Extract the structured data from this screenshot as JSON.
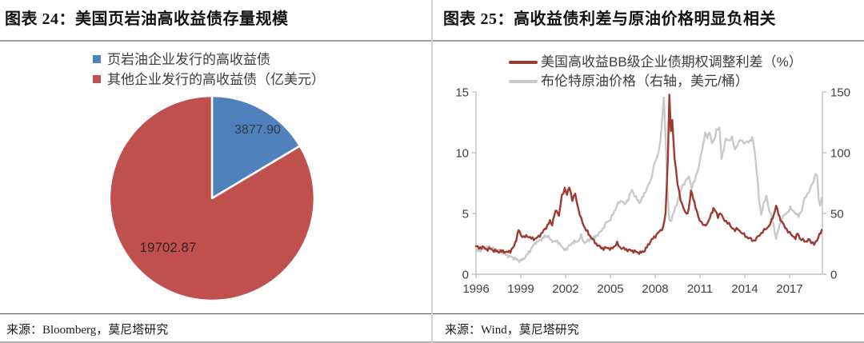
{
  "panels": {
    "left": {
      "title": "图表 24：美国页岩油高收益债存量规模",
      "source": "来源：Bloomberg，莫尼塔研究",
      "legend": [
        {
          "label": "页岩油企业发行的高收益债",
          "color": "#4F81BD"
        },
        {
          "label": "其他企业发行的高收益债（亿美元）",
          "color": "#C0504D"
        }
      ]
    },
    "right": {
      "title": "图表 25：高收益债利差与原油价格明显负相关",
      "source": "来源：Wind，莫尼塔研究",
      "legend": [
        {
          "label": "美国高收益BB级企业债期权调整利差（%）",
          "color": "#9C3A32"
        },
        {
          "label": "布伦特原油价格（右轴，美元/桶）",
          "color": "#C9C9C9"
        }
      ]
    }
  },
  "colors": {
    "pie_blue": "#4F81BD",
    "pie_red": "#C0504D",
    "line_red": "#9C3A32",
    "line_gray": "#C9C9C9",
    "axis": "#bfbfbf"
  },
  "chart_data": [
    {
      "type": "pie",
      "title": "美国页岩油高收益债存量规模",
      "unit": "亿美元",
      "start_angle_deg": -90,
      "clockwise": true,
      "slices": [
        {
          "label": "页岩油企业发行的高收益债",
          "value": 3877.9,
          "display": "3877.90",
          "color": "#4F81BD"
        },
        {
          "label": "其他企业发行的高收益债",
          "value": 19702.87,
          "display": "19702.87",
          "color": "#C0504D"
        }
      ]
    },
    {
      "type": "line",
      "title": "高收益债利差与原油价格明显负相关",
      "x_range": [
        1996,
        2019.2
      ],
      "x_ticks": [
        1996,
        1999,
        2002,
        2005,
        2008,
        2011,
        2014,
        2017
      ],
      "left_axis": {
        "range": [
          0,
          15
        ],
        "ticks": [
          0,
          5,
          10,
          15
        ]
      },
      "right_axis": {
        "range": [
          0,
          150
        ],
        "ticks": [
          0,
          50,
          100,
          150
        ]
      },
      "grid": false,
      "legend_position": "top",
      "series": [
        {
          "name": "布伦特原油价格（右轴，美元/桶）",
          "axis": "right",
          "color": "#C9C9C9",
          "points": [
            [
              1996.0,
              19
            ],
            [
              1996.3,
              20
            ],
            [
              1996.6,
              21
            ],
            [
              1996.9,
              23
            ],
            [
              1997.15,
              21
            ],
            [
              1997.4,
              19.5
            ],
            [
              1997.7,
              19
            ],
            [
              1998.0,
              16
            ],
            [
              1998.3,
              14.5
            ],
            [
              1998.6,
              13
            ],
            [
              1998.9,
              11
            ],
            [
              1999.15,
              12
            ],
            [
              1999.45,
              16.5
            ],
            [
              1999.75,
              22
            ],
            [
              2000.0,
              26
            ],
            [
              2000.3,
              28
            ],
            [
              2000.6,
              31
            ],
            [
              2000.85,
              31.5
            ],
            [
              2001.05,
              27
            ],
            [
              2001.3,
              27.5
            ],
            [
              2001.6,
              25.5
            ],
            [
              2001.85,
              20.5
            ],
            [
              2002.1,
              21
            ],
            [
              2002.35,
              25
            ],
            [
              2002.6,
              26.5
            ],
            [
              2002.85,
              27.5
            ],
            [
              2003.05,
              31.5
            ],
            [
              2003.25,
              26
            ],
            [
              2003.5,
              27.5
            ],
            [
              2003.75,
              29.5
            ],
            [
              2004.0,
              31
            ],
            [
              2004.25,
              33.5
            ],
            [
              2004.5,
              37.5
            ],
            [
              2004.75,
              43
            ],
            [
              2005.0,
              45
            ],
            [
              2005.25,
              51.5
            ],
            [
              2005.5,
              58
            ],
            [
              2005.75,
              61
            ],
            [
              2005.95,
              57
            ],
            [
              2006.2,
              62
            ],
            [
              2006.45,
              69.5
            ],
            [
              2006.7,
              63
            ],
            [
              2006.95,
              59
            ],
            [
              2007.2,
              64
            ],
            [
              2007.45,
              71
            ],
            [
              2007.7,
              77
            ],
            [
              2007.95,
              91
            ],
            [
              2008.15,
              97
            ],
            [
              2008.35,
              109
            ],
            [
              2008.5,
              132
            ],
            [
              2008.58,
              145.6
            ],
            [
              2008.7,
              113
            ],
            [
              2008.8,
              73
            ],
            [
              2008.95,
              44
            ],
            [
              2009.1,
              45
            ],
            [
              2009.25,
              51
            ],
            [
              2009.45,
              58
            ],
            [
              2009.65,
              67
            ],
            [
              2009.85,
              73
            ],
            [
              2010.05,
              77
            ],
            [
              2010.25,
              80
            ],
            [
              2010.45,
              72
            ],
            [
              2010.65,
              77
            ],
            [
              2010.85,
              85
            ],
            [
              2011.05,
              97
            ],
            [
              2011.2,
              105
            ],
            [
              2011.35,
              117
            ],
            [
              2011.5,
              112
            ],
            [
              2011.65,
              117.5
            ],
            [
              2011.8,
              108
            ],
            [
              2011.95,
              110
            ],
            [
              2012.1,
              119
            ],
            [
              2012.3,
              120
            ],
            [
              2012.45,
              96
            ],
            [
              2012.6,
              103
            ],
            [
              2012.75,
              112
            ],
            [
              2012.95,
              110
            ],
            [
              2013.15,
              112
            ],
            [
              2013.35,
              103
            ],
            [
              2013.55,
              107
            ],
            [
              2013.75,
              111
            ],
            [
              2013.95,
              108
            ],
            [
              2014.15,
              108.5
            ],
            [
              2014.35,
              110
            ],
            [
              2014.5,
              112
            ],
            [
              2014.65,
              103
            ],
            [
              2014.8,
              85
            ],
            [
              2014.95,
              62
            ],
            [
              2015.1,
              49
            ],
            [
              2015.25,
              57
            ],
            [
              2015.45,
              64.5
            ],
            [
              2015.65,
              52
            ],
            [
              2015.85,
              45
            ],
            [
              2016.0,
              36
            ],
            [
              2016.1,
              28.5
            ],
            [
              2016.25,
              37
            ],
            [
              2016.45,
              45
            ],
            [
              2016.65,
              48.5
            ],
            [
              2016.85,
              51
            ],
            [
              2017.05,
              54.5
            ],
            [
              2017.25,
              52
            ],
            [
              2017.45,
              50
            ],
            [
              2017.6,
              47.5
            ],
            [
              2017.8,
              52.5
            ],
            [
              2018.0,
              62
            ],
            [
              2018.2,
              66
            ],
            [
              2018.4,
              71
            ],
            [
              2018.6,
              76
            ],
            [
              2018.75,
              84
            ],
            [
              2018.85,
              80
            ],
            [
              2018.95,
              62
            ],
            [
              2019.05,
              56
            ],
            [
              2019.15,
              63
            ]
          ]
        },
        {
          "name": "美国高收益BB级企业债期权调整利差（%）",
          "axis": "left",
          "color": "#9C3A32",
          "points": [
            [
              1996.0,
              2.3
            ],
            [
              1996.2,
              2.15
            ],
            [
              1996.45,
              2.25
            ],
            [
              1996.7,
              2.05
            ],
            [
              1996.95,
              2.1
            ],
            [
              1997.2,
              1.95
            ],
            [
              1997.5,
              1.85
            ],
            [
              1997.8,
              1.9
            ],
            [
              1998.05,
              1.8
            ],
            [
              1998.3,
              1.9
            ],
            [
              1998.55,
              2.3
            ],
            [
              1998.7,
              2.9
            ],
            [
              1998.85,
              3.65
            ],
            [
              1999.0,
              3.25
            ],
            [
              1999.2,
              3.05
            ],
            [
              1999.45,
              3.15
            ],
            [
              1999.7,
              2.95
            ],
            [
              1999.95,
              2.9
            ],
            [
              2000.2,
              3.1
            ],
            [
              2000.45,
              3.45
            ],
            [
              2000.7,
              3.85
            ],
            [
              2000.95,
              4.35
            ],
            [
              2001.1,
              4.1
            ],
            [
              2001.25,
              4.9
            ],
            [
              2001.4,
              5.3
            ],
            [
              2001.55,
              4.8
            ],
            [
              2001.75,
              6.4
            ],
            [
              2001.95,
              7.1
            ],
            [
              2002.1,
              6.5
            ],
            [
              2002.25,
              7.25
            ],
            [
              2002.45,
              6.1
            ],
            [
              2002.65,
              6.6
            ],
            [
              2002.85,
              5.4
            ],
            [
              2003.05,
              4.5
            ],
            [
              2003.3,
              3.8
            ],
            [
              2003.55,
              3.3
            ],
            [
              2003.8,
              2.9
            ],
            [
              2004.05,
              2.5
            ],
            [
              2004.3,
              2.25
            ],
            [
              2004.55,
              2.1
            ],
            [
              2004.8,
              2.2
            ],
            [
              2005.05,
              2.05
            ],
            [
              2005.3,
              2.35
            ],
            [
              2005.45,
              2.55
            ],
            [
              2005.65,
              2.2
            ],
            [
              2005.9,
              2.1
            ],
            [
              2006.15,
              2.0
            ],
            [
              2006.4,
              1.95
            ],
            [
              2006.7,
              1.85
            ],
            [
              2007.0,
              1.75
            ],
            [
              2007.3,
              1.95
            ],
            [
              2007.6,
              2.55
            ],
            [
              2007.85,
              2.95
            ],
            [
              2008.1,
              3.25
            ],
            [
              2008.35,
              3.6
            ],
            [
              2008.55,
              3.9
            ],
            [
              2008.7,
              5.0
            ],
            [
              2008.85,
              9.5
            ],
            [
              2008.95,
              14.68
            ],
            [
              2009.05,
              11.8
            ],
            [
              2009.15,
              12.6
            ],
            [
              2009.3,
              9.6
            ],
            [
              2009.5,
              7.4
            ],
            [
              2009.7,
              6.2
            ],
            [
              2009.9,
              5.4
            ],
            [
              2010.1,
              4.9
            ],
            [
              2010.25,
              5.4
            ],
            [
              2010.4,
              6.85
            ],
            [
              2010.55,
              6.3
            ],
            [
              2010.7,
              5.5
            ],
            [
              2010.9,
              4.7
            ],
            [
              2011.1,
              4.25
            ],
            [
              2011.3,
              3.95
            ],
            [
              2011.55,
              4.3
            ],
            [
              2011.75,
              4.9
            ],
            [
              2011.9,
              5.45
            ],
            [
              2012.05,
              5.15
            ],
            [
              2012.2,
              4.75
            ],
            [
              2012.35,
              5.05
            ],
            [
              2012.55,
              4.6
            ],
            [
              2012.75,
              4.35
            ],
            [
              2012.95,
              4.1
            ],
            [
              2013.15,
              3.85
            ],
            [
              2013.35,
              3.6
            ],
            [
              2013.55,
              3.75
            ],
            [
              2013.75,
              3.45
            ],
            [
              2013.95,
              3.25
            ],
            [
              2014.15,
              3.05
            ],
            [
              2014.4,
              2.9
            ],
            [
              2014.6,
              2.75
            ],
            [
              2014.8,
              2.95
            ],
            [
              2015.0,
              3.25
            ],
            [
              2015.2,
              3.5
            ],
            [
              2015.4,
              3.7
            ],
            [
              2015.6,
              3.95
            ],
            [
              2015.8,
              4.4
            ],
            [
              2015.95,
              4.9
            ],
            [
              2016.1,
              5.65
            ],
            [
              2016.25,
              5.0
            ],
            [
              2016.4,
              4.5
            ],
            [
              2016.6,
              4.05
            ],
            [
              2016.8,
              3.7
            ],
            [
              2017.0,
              3.4
            ],
            [
              2017.2,
              3.15
            ],
            [
              2017.4,
              3.0
            ],
            [
              2017.55,
              3.35
            ],
            [
              2017.7,
              2.95
            ],
            [
              2017.9,
              2.8
            ],
            [
              2018.1,
              2.65
            ],
            [
              2018.25,
              2.9
            ],
            [
              2018.45,
              2.6
            ],
            [
              2018.65,
              2.55
            ],
            [
              2018.85,
              2.75
            ],
            [
              2019.0,
              3.3
            ],
            [
              2019.15,
              3.65
            ]
          ]
        }
      ]
    }
  ]
}
